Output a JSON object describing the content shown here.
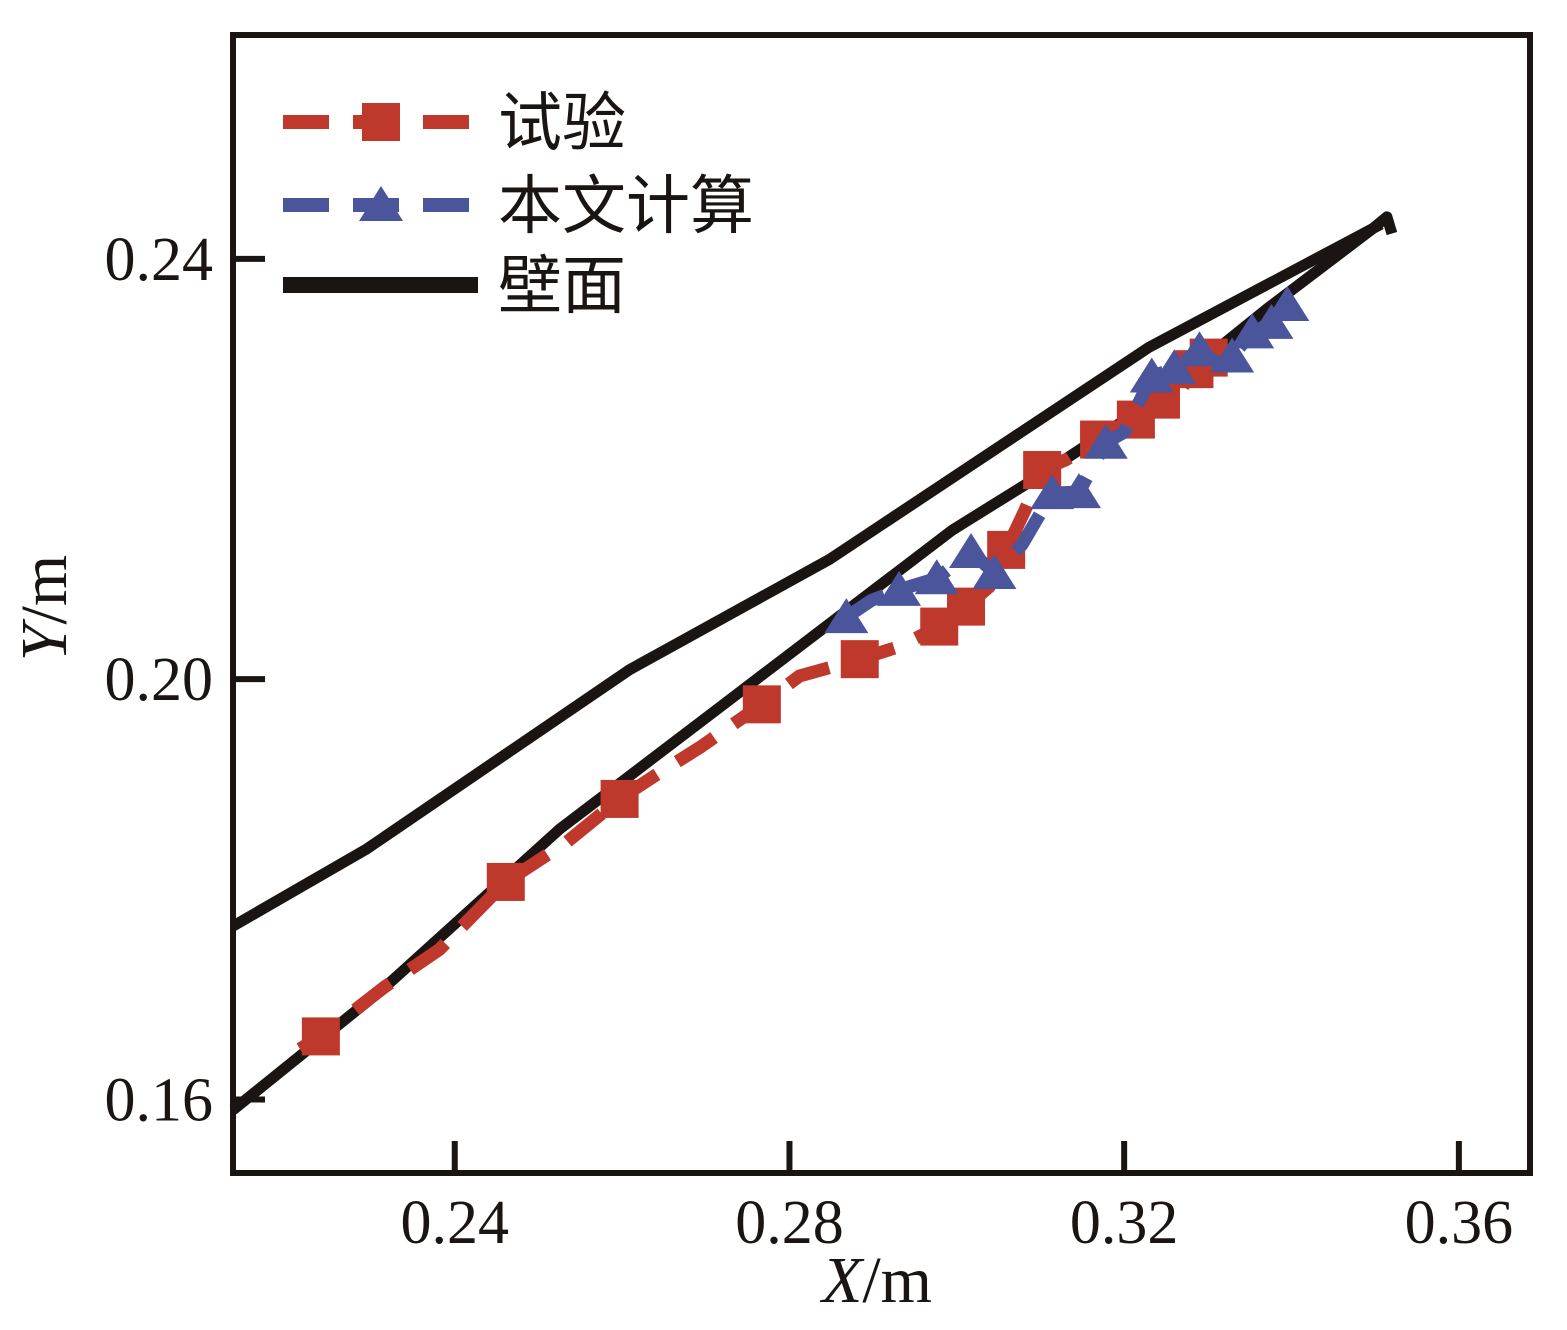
{
  "figure": {
    "background": "#ffffff",
    "frame_color": "#1a1512"
  },
  "chart_data": {
    "type": "line",
    "title": "",
    "xlabel": "X/m",
    "ylabel": "Y/m",
    "xlim": [
      0.2135,
      0.3685
    ],
    "ylim": [
      0.153,
      0.2613
    ],
    "grid": false,
    "legend_position": "top-left-inside",
    "x_ticks": [
      {
        "value": 0.24,
        "label": "0.24"
      },
      {
        "value": 0.28,
        "label": "0.28"
      },
      {
        "value": 0.32,
        "label": "0.32"
      },
      {
        "value": 0.36,
        "label": "0.36"
      }
    ],
    "y_ticks": [
      {
        "value": 0.16,
        "label": "0.16"
      },
      {
        "value": 0.2,
        "label": "0.20"
      },
      {
        "value": 0.24,
        "label": "0.24"
      }
    ],
    "series": [
      {
        "id": "bimian-upper",
        "label": "壁面",
        "color": "#1a1512",
        "line": "solid",
        "marker": "none",
        "in_legend": true,
        "points": [
          [
            0.2135,
            0.1765
          ],
          [
            0.2294,
            0.1838
          ],
          [
            0.2609,
            0.2009
          ],
          [
            0.2848,
            0.2114
          ],
          [
            0.323,
            0.2316
          ],
          [
            0.3507,
            0.2433
          ]
        ],
        "marker_points": []
      },
      {
        "id": "bimian-lower",
        "label": "壁面",
        "color": "#1a1512",
        "line": "solid",
        "marker": "none",
        "in_legend": false,
        "points": [
          [
            0.2135,
            0.159
          ],
          [
            0.2314,
            0.1705
          ],
          [
            0.2525,
            0.1857
          ],
          [
            0.2728,
            0.198
          ],
          [
            0.2995,
            0.2142
          ],
          [
            0.311,
            0.2199
          ],
          [
            0.323,
            0.2262
          ],
          [
            0.337,
            0.2352
          ],
          [
            0.3496,
            0.2428
          ],
          [
            0.3514,
            0.244
          ],
          [
            0.352,
            0.2424
          ]
        ],
        "marker_points": []
      },
      {
        "id": "shiyan",
        "label": "试验",
        "color": "#be382c",
        "line": "dashed",
        "marker": "square",
        "in_legend": true,
        "points": [
          [
            0.2215,
            0.1648
          ],
          [
            0.224,
            0.166
          ],
          [
            0.2316,
            0.1707
          ],
          [
            0.2382,
            0.1743
          ],
          [
            0.2461,
            0.1807
          ],
          [
            0.2534,
            0.1845
          ],
          [
            0.2597,
            0.1886
          ],
          [
            0.2639,
            0.1908
          ],
          [
            0.2693,
            0.1935
          ],
          [
            0.2767,
            0.1976
          ],
          [
            0.2812,
            0.2003
          ],
          [
            0.2884,
            0.2019
          ],
          [
            0.2931,
            0.2031
          ],
          [
            0.2979,
            0.205
          ],
          [
            0.3011,
            0.2069
          ],
          [
            0.3039,
            0.2088
          ],
          [
            0.3059,
            0.2123
          ],
          [
            0.3081,
            0.216
          ],
          [
            0.3102,
            0.2199
          ],
          [
            0.3131,
            0.2209
          ],
          [
            0.317,
            0.2228
          ],
          [
            0.3214,
            0.2247
          ],
          [
            0.323,
            0.228
          ],
          [
            0.3244,
            0.2266
          ],
          [
            0.3263,
            0.227
          ],
          [
            0.3284,
            0.2295
          ],
          [
            0.3301,
            0.2306
          ]
        ],
        "marker_points": [
          [
            0.224,
            0.166
          ],
          [
            0.2461,
            0.1807
          ],
          [
            0.2597,
            0.1886
          ],
          [
            0.2767,
            0.1976
          ],
          [
            0.2884,
            0.2019
          ],
          [
            0.2979,
            0.205
          ],
          [
            0.3011,
            0.2069
          ],
          [
            0.3059,
            0.2123
          ],
          [
            0.3102,
            0.2199
          ],
          [
            0.317,
            0.2228
          ],
          [
            0.3214,
            0.2247
          ],
          [
            0.3244,
            0.2266
          ],
          [
            0.3284,
            0.2295
          ],
          [
            0.3301,
            0.2306
          ]
        ]
      },
      {
        "id": "benwen-jisuan",
        "label": "本文计算",
        "color": "#4b559b",
        "line": "dashed",
        "marker": "triangle",
        "in_legend": true,
        "points": [
          [
            0.2868,
            0.2059
          ],
          [
            0.2898,
            0.2075
          ],
          [
            0.2931,
            0.2085
          ],
          [
            0.2976,
            0.2096
          ],
          [
            0.3017,
            0.2121
          ],
          [
            0.3045,
            0.2101
          ],
          [
            0.3078,
            0.2128
          ],
          [
            0.3114,
            0.2177
          ],
          [
            0.3146,
            0.2178
          ],
          [
            0.3178,
            0.2225
          ],
          [
            0.32,
            0.2235
          ],
          [
            0.3233,
            0.2288
          ],
          [
            0.326,
            0.2296
          ],
          [
            0.329,
            0.2313
          ],
          [
            0.3311,
            0.2301
          ],
          [
            0.3329,
            0.2307
          ],
          [
            0.3353,
            0.233
          ],
          [
            0.3376,
            0.2339
          ],
          [
            0.3395,
            0.2356
          ]
        ],
        "marker_points": [
          [
            0.2868,
            0.2059
          ],
          [
            0.2931,
            0.2085
          ],
          [
            0.2976,
            0.2096
          ],
          [
            0.3017,
            0.2121
          ],
          [
            0.3045,
            0.2101
          ],
          [
            0.3114,
            0.2177
          ],
          [
            0.3146,
            0.2178
          ],
          [
            0.3178,
            0.2225
          ],
          [
            0.3233,
            0.2288
          ],
          [
            0.326,
            0.2296
          ],
          [
            0.329,
            0.2313
          ],
          [
            0.3329,
            0.2307
          ],
          [
            0.3353,
            0.233
          ],
          [
            0.3376,
            0.2339
          ],
          [
            0.3395,
            0.2356
          ]
        ]
      }
    ]
  }
}
